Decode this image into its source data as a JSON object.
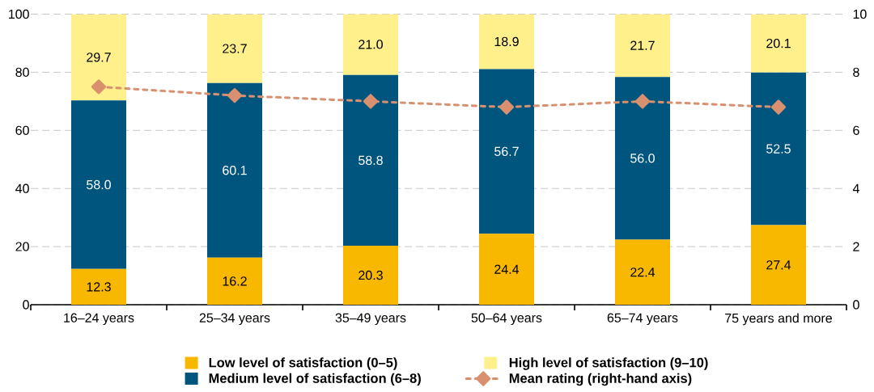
{
  "chart_data": {
    "type": "bar",
    "stacked": true,
    "categories": [
      "16–24 years",
      "25–34 years",
      "35–49 years",
      "50–64 years",
      "65–74 years",
      "75 years and more"
    ],
    "series": [
      {
        "name": "Low level of satisfaction (0–5)",
        "color": "#f9b800",
        "values": [
          12.3,
          16.2,
          20.3,
          24.4,
          22.4,
          27.4
        ],
        "value_labels": [
          "12.3",
          "16.2",
          "20.3",
          "24.4",
          "22.4",
          "27.4"
        ]
      },
      {
        "name": "Medium level of satisfaction (6–8)",
        "color": "#00557f",
        "values": [
          58.0,
          60.1,
          58.8,
          56.7,
          56.0,
          52.5
        ],
        "value_labels": [
          "58.0",
          "60.1",
          "58.8",
          "56.7",
          "56.0",
          "52.5"
        ]
      },
      {
        "name": "High level of satisfaction (9–10)",
        "color": "#fff08c",
        "values": [
          29.7,
          23.7,
          21.0,
          18.9,
          21.7,
          20.1
        ],
        "value_labels": [
          "29.7",
          "23.7",
          "21.0",
          "18.9",
          "21.7",
          "20.1"
        ]
      },
      {
        "name": "Mean rating (right-hand axis)",
        "type": "line",
        "axis": "y2",
        "color": "#d9906f",
        "marker": "diamond",
        "line_style": "dashed",
        "values": [
          7.5,
          7.2,
          7.0,
          6.8,
          7.0,
          6.8
        ]
      }
    ],
    "ylim": [
      0,
      100
    ],
    "yticks": [
      0,
      20,
      40,
      60,
      80,
      100
    ],
    "y2lim": [
      0,
      10
    ],
    "y2ticks": [
      0,
      2,
      4,
      6,
      8,
      10
    ],
    "grid": "y",
    "legend": "bottom"
  }
}
